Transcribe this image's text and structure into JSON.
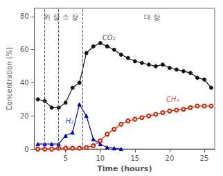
{
  "chart_data": {
    "type": "line",
    "xlabel": "Time (hours)",
    "ylabel": "Concentration (%)",
    "xlim": [
      0.5,
      26.5
    ],
    "xticks": [
      5,
      10,
      15,
      20,
      25
    ],
    "ylim": [
      0,
      85
    ],
    "yticks": [
      0,
      20,
      40,
      60,
      80
    ],
    "grid": false,
    "series": [
      {
        "x": [
          1,
          2,
          3,
          4,
          5,
          6,
          7,
          8,
          9,
          10,
          11,
          12,
          13,
          14,
          15,
          16,
          17,
          18,
          19,
          20,
          21,
          22,
          23,
          24,
          25,
          26
        ],
        "values": [
          30,
          29,
          25,
          25,
          28,
          37,
          40,
          58,
          62,
          64,
          62,
          60,
          57,
          55,
          53,
          52,
          51,
          50,
          51,
          49,
          48,
          47,
          46,
          43,
          42,
          37
        ],
        "color": "#111111",
        "marker": "circle"
      },
      {
        "x": [
          1,
          2,
          3,
          4,
          5,
          6,
          7,
          8,
          9,
          10,
          11,
          12,
          13
        ],
        "values": [
          3,
          3,
          3,
          3,
          8,
          10,
          27,
          20,
          6,
          3,
          1,
          0.5,
          0
        ],
        "color": "#0000bb",
        "marker": "triangle"
      },
      {
        "x": [
          1,
          2,
          3,
          4,
          5,
          6,
          7,
          8,
          9,
          10,
          11,
          12,
          13,
          14,
          15,
          16,
          17,
          18,
          19,
          20,
          21,
          22,
          23,
          24,
          25,
          26
        ],
        "values": [
          0,
          0,
          0,
          0.5,
          0.5,
          0.5,
          0.5,
          1,
          2,
          5,
          9,
          12,
          15,
          17,
          18,
          19,
          20,
          21,
          22,
          23,
          23.5,
          24,
          25,
          26,
          26,
          26
        ],
        "color": "#cc2200",
        "marker": "open_circle"
      }
    ],
    "vlines": [
      2,
      4,
      7.5
    ],
    "region_labels": [
      {
        "text": "위 장",
        "x": 3.0,
        "y": 82
      },
      {
        "text": "소 장",
        "x": 5.7,
        "y": 82
      },
      {
        "text": "대 장",
        "x": 17.5,
        "y": 82
      }
    ],
    "annotations": [
      {
        "text": "CO₂",
        "x": 10.3,
        "y": 65,
        "color": "#111111"
      },
      {
        "text": "H₂",
        "x": 5.0,
        "y": 15,
        "color": "#0000bb"
      },
      {
        "text": "CH₄",
        "x": 19.5,
        "y": 28,
        "color": "#cc2200"
      }
    ]
  }
}
